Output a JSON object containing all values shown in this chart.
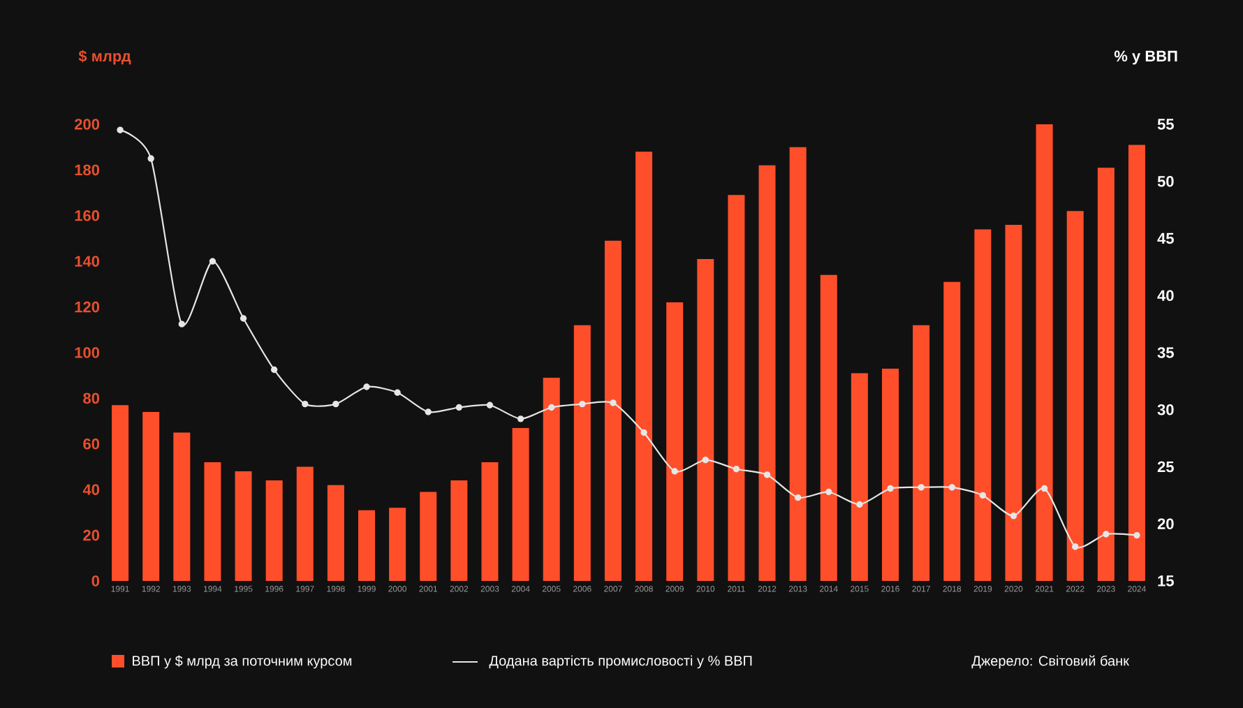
{
  "chart_data": {
    "type": "bar",
    "ylabel": "$ млрд",
    "y2label": "% у ВВП",
    "categories": [
      "1991",
      "1992",
      "1993",
      "1994",
      "1995",
      "1996",
      "1997",
      "1998",
      "1999",
      "2000",
      "2001",
      "2002",
      "2003",
      "2004",
      "2005",
      "2006",
      "2007",
      "2008",
      "2009",
      "2010",
      "2011",
      "2012",
      "2013",
      "2014",
      "2015",
      "2016",
      "2017",
      "2018",
      "2019",
      "2020",
      "2021",
      "2022",
      "2023",
      "2024"
    ],
    "series": [
      {
        "name": "ВВП у $ млрд за поточним курсом",
        "color": "#ff4f2a",
        "values": [
          77,
          74,
          65,
          52,
          48,
          44,
          50,
          42,
          31,
          32,
          39,
          44,
          52,
          67,
          89,
          112,
          149,
          188,
          122,
          141,
          169,
          182,
          190,
          134,
          91,
          93,
          112,
          131,
          154,
          156,
          200,
          162,
          181,
          191
        ]
      },
      {
        "name": "Додана вартість промисловості у % ВВП",
        "type": "line",
        "axis": "y2",
        "marker": "circle",
        "color": "#e6e6e6",
        "values": [
          54.5,
          52,
          37.5,
          43,
          38,
          33.5,
          30.5,
          30.5,
          32,
          31.5,
          29.8,
          30.2,
          30.4,
          29.2,
          30.2,
          30.5,
          30.6,
          28,
          24.6,
          25.6,
          24.8,
          24.3,
          22.3,
          22.8,
          21.7,
          23.1,
          23.2,
          23.2,
          22.5,
          20.7,
          23.1,
          18,
          19.1,
          19
        ]
      }
    ],
    "ylim": [
      0,
      200
    ],
    "yticks": [
      0,
      20,
      40,
      60,
      80,
      100,
      120,
      140,
      160,
      180,
      200
    ],
    "y2lim": [
      15,
      55
    ],
    "y2ticks": [
      15,
      20,
      25,
      30,
      35,
      40,
      45,
      50,
      55
    ],
    "legend": "bottom",
    "annotations": [
      "Джерело: Світовий банк"
    ]
  }
}
